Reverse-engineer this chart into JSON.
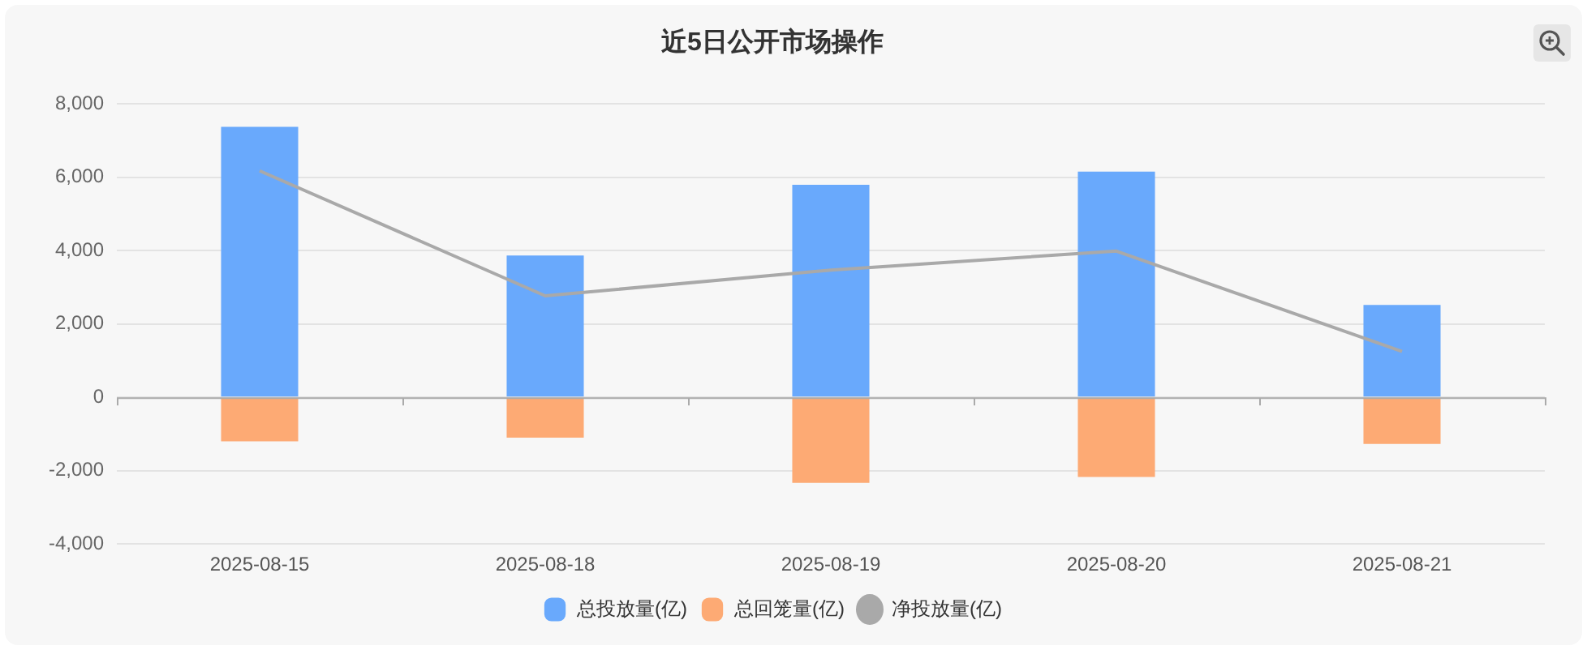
{
  "chart_data": {
    "type": "bar",
    "title": "近5日公开市场操作",
    "categories": [
      "2025-08-15",
      "2025-08-18",
      "2025-08-19",
      "2025-08-20",
      "2025-08-21"
    ],
    "stacked": true,
    "series": [
      {
        "name": "总投放量(亿)",
        "color": "#69a9fc",
        "values": [
          7380,
          3870,
          5800,
          6160,
          2520
        ]
      },
      {
        "name": "总回笼量(亿)",
        "color": "#fdaa74",
        "values": [
          -1200,
          -1100,
          -2330,
          -2170,
          -1270
        ]
      },
      {
        "name": "净投放量(亿)",
        "type": "line",
        "color": "#a9a9a9",
        "values": [
          6180,
          2770,
          3470,
          3990,
          1250
        ]
      }
    ],
    "ylim": [
      -4000,
      8000
    ],
    "yticks": [
      {
        "value": -4000,
        "label": "-4,000"
      },
      {
        "value": -2000,
        "label": "-2,000"
      },
      {
        "value": 0,
        "label": "0"
      },
      {
        "value": 2000,
        "label": "2,000"
      },
      {
        "value": 4000,
        "label": "4,000"
      },
      {
        "value": 6000,
        "label": "6,000"
      },
      {
        "value": 8000,
        "label": "8,000"
      }
    ],
    "grid": "y",
    "legend": "bottom",
    "marker": "none"
  }
}
